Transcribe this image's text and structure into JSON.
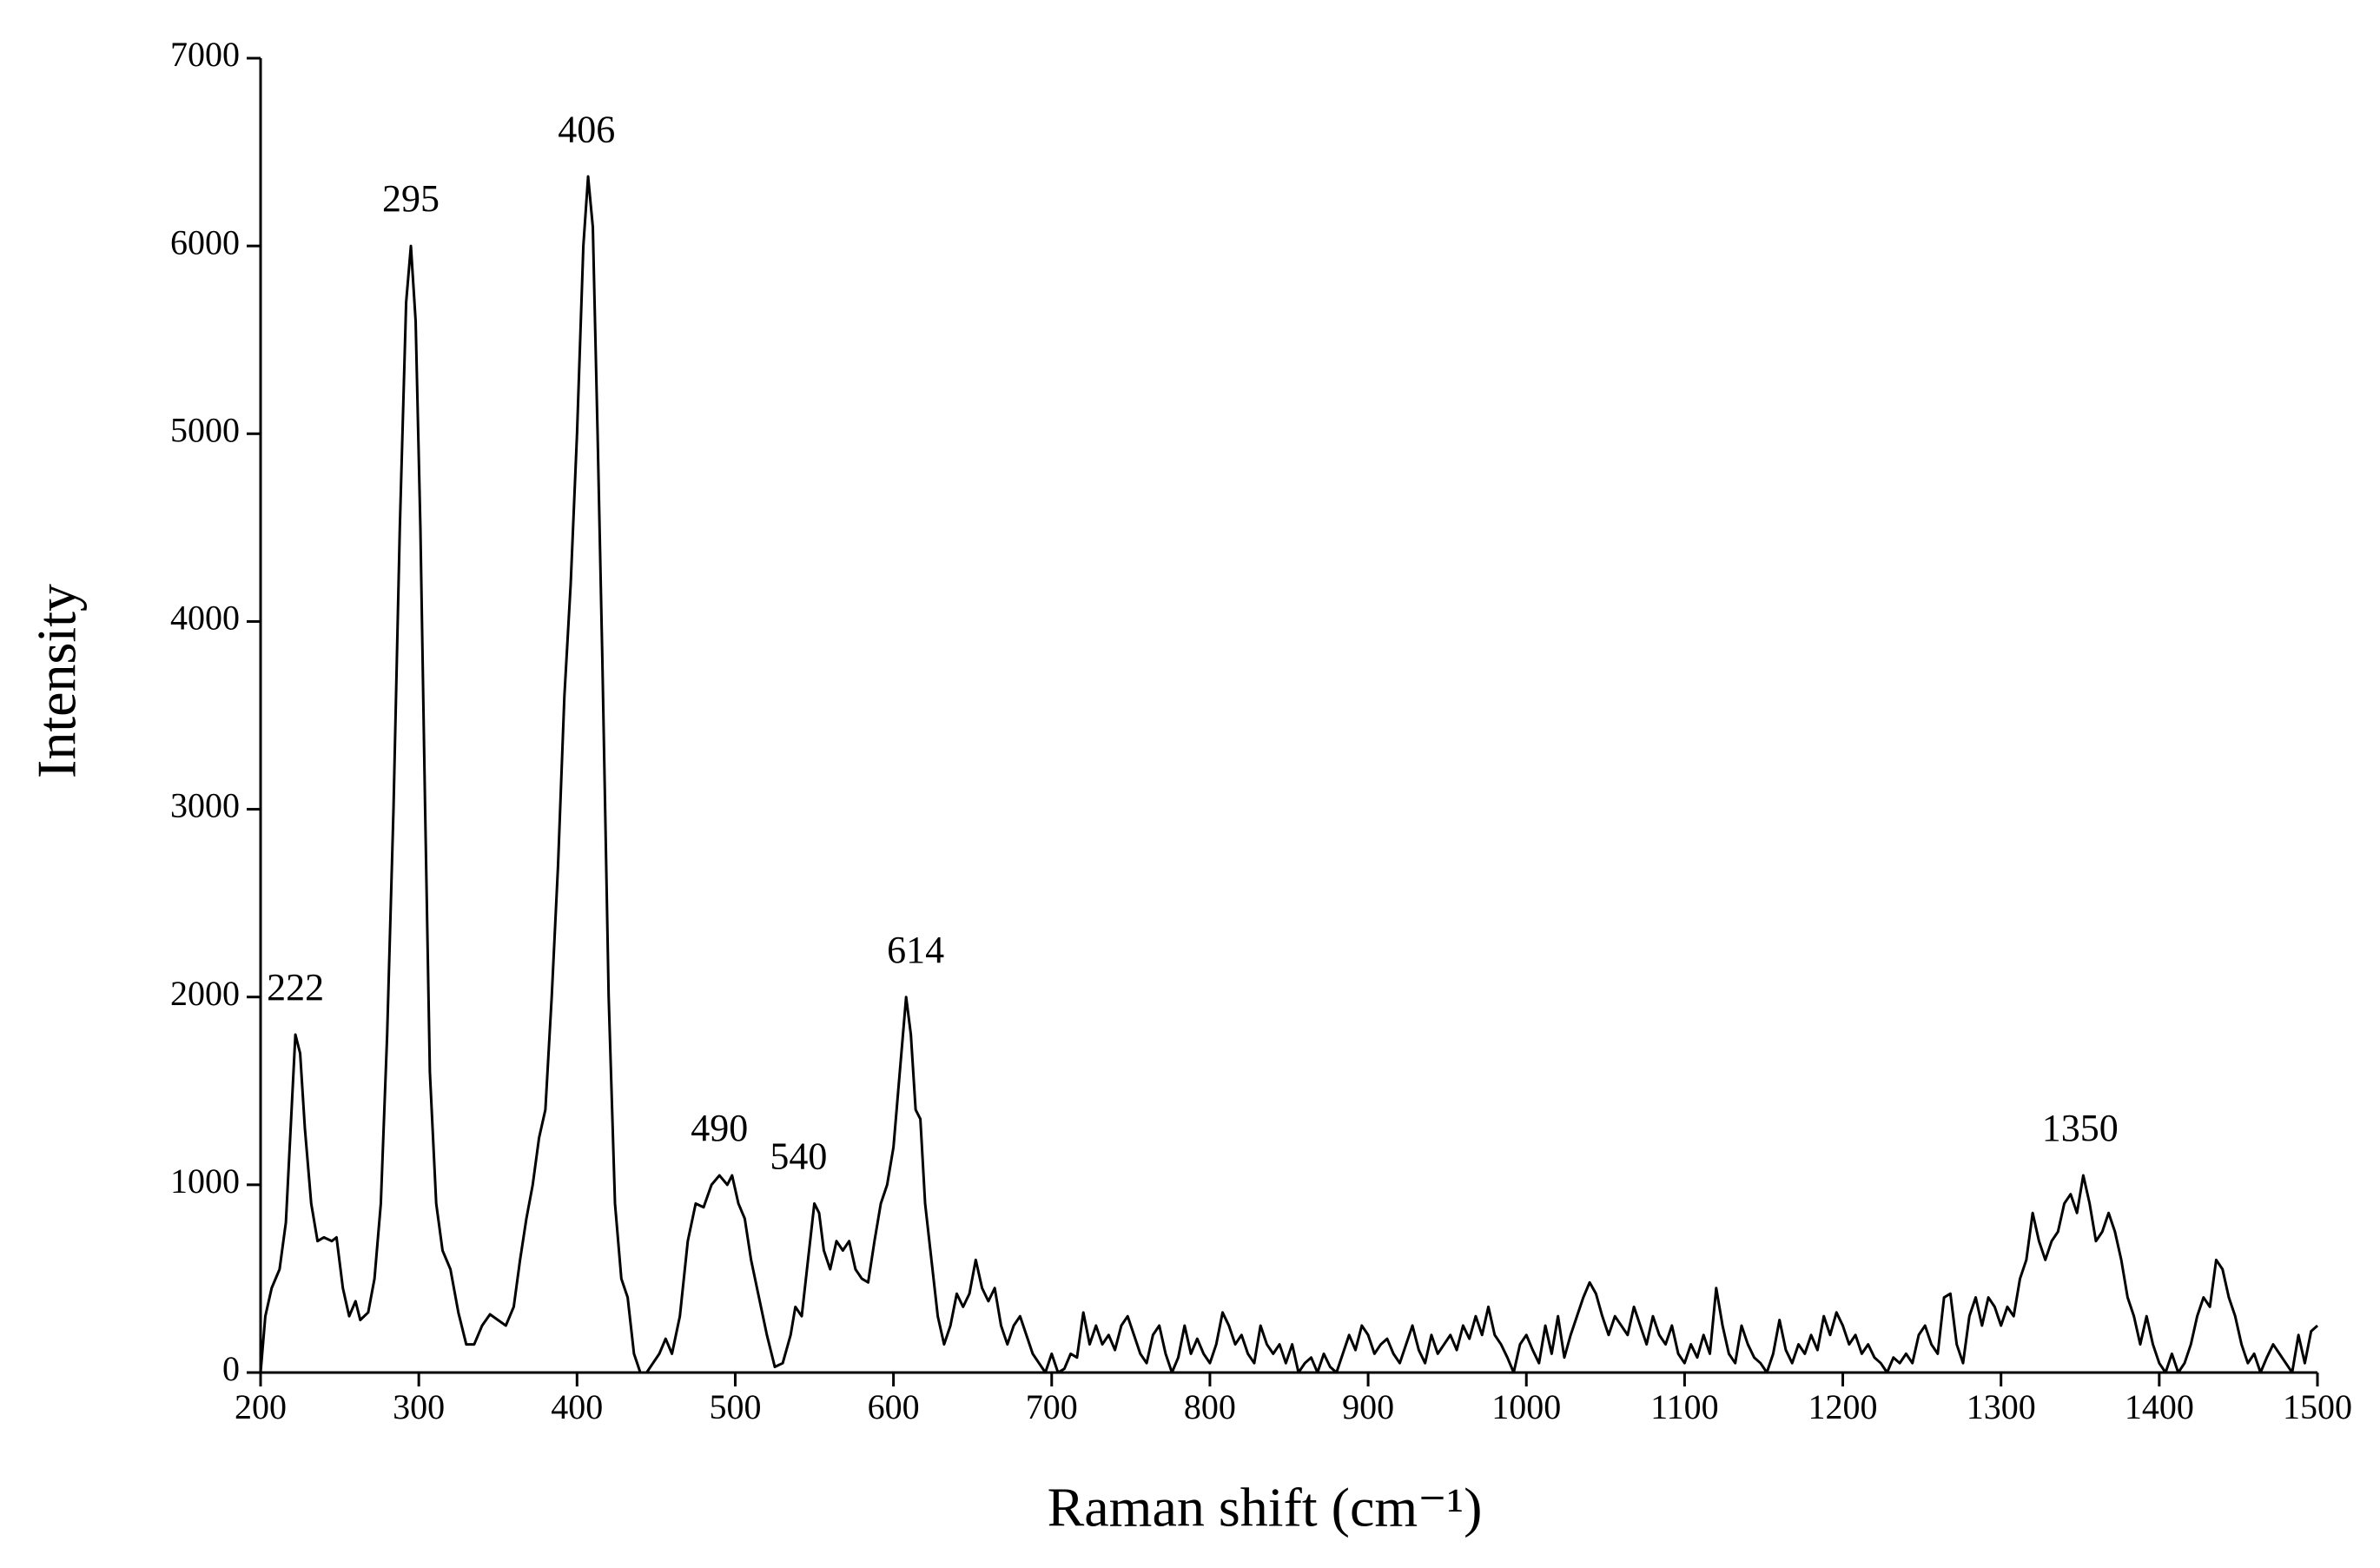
{
  "chart_data": {
    "type": "line",
    "xlabel": "Raman shift (cm⁻¹)",
    "ylabel": "Intensity",
    "xlim": [
      200,
      1500
    ],
    "ylim": [
      0,
      7000
    ],
    "xticks": [
      200,
      300,
      400,
      500,
      600,
      700,
      800,
      900,
      1000,
      1100,
      1200,
      1300,
      1400,
      1500
    ],
    "yticks": [
      0,
      1000,
      2000,
      3000,
      4000,
      5000,
      6000,
      7000
    ],
    "color": "#000000",
    "annotations": [
      {
        "text": "222",
        "x": 222,
        "y": 1800
      },
      {
        "text": "295",
        "x": 295,
        "y": 6000
      },
      {
        "text": "406",
        "x": 406,
        "y": 6370
      },
      {
        "text": "490",
        "x": 490,
        "y": 1050
      },
      {
        "text": "540",
        "x": 540,
        "y": 900
      },
      {
        "text": "614",
        "x": 614,
        "y": 2000
      },
      {
        "text": "1350",
        "x": 1350,
        "y": 1050
      }
    ],
    "x": [
      200,
      203,
      207,
      212,
      216,
      219,
      222,
      225,
      228,
      232,
      236,
      240,
      245,
      248,
      252,
      256,
      260,
      263,
      268,
      272,
      276,
      280,
      284,
      288,
      292,
      295,
      298,
      301,
      304,
      307,
      311,
      315,
      320,
      325,
      330,
      335,
      340,
      345,
      350,
      355,
      360,
      364,
      368,
      372,
      376,
      380,
      384,
      388,
      392,
      396,
      400,
      404,
      407,
      410,
      413,
      416,
      420,
      424,
      428,
      432,
      436,
      440,
      444,
      448,
      452,
      456,
      460,
      465,
      470,
      475,
      480,
      485,
      490,
      495,
      498,
      502,
      506,
      510,
      515,
      520,
      525,
      530,
      535,
      538,
      542,
      546,
      550,
      553,
      556,
      560,
      564,
      568,
      572,
      576,
      580,
      584,
      588,
      592,
      596,
      600,
      604,
      608,
      611,
      614,
      617,
      620,
      624,
      628,
      632,
      636,
      640,
      644,
      648,
      652,
      656,
      660,
      664,
      668,
      672,
      676,
      680,
      684,
      688,
      692,
      696,
      700,
      704,
      708,
      712,
      716,
      720,
      724,
      728,
      732,
      736,
      740,
      744,
      748,
      752,
      756,
      760,
      764,
      768,
      772,
      776,
      780,
      784,
      788,
      792,
      796,
      800,
      804,
      808,
      812,
      816,
      820,
      824,
      828,
      832,
      836,
      840,
      844,
      848,
      852,
      856,
      860,
      864,
      868,
      872,
      876,
      880,
      884,
      888,
      892,
      896,
      900,
      904,
      908,
      912,
      916,
      920,
      924,
      928,
      932,
      936,
      940,
      944,
      948,
      952,
      956,
      960,
      964,
      968,
      972,
      976,
      980,
      984,
      988,
      992,
      996,
      1000,
      1004,
      1008,
      1012,
      1016,
      1020,
      1024,
      1028,
      1032,
      1036,
      1040,
      1044,
      1048,
      1052,
      1056,
      1060,
      1064,
      1068,
      1072,
      1076,
      1080,
      1084,
      1088,
      1092,
      1096,
      1100,
      1104,
      1108,
      1112,
      1116,
      1120,
      1124,
      1128,
      1132,
      1136,
      1140,
      1144,
      1148,
      1152,
      1156,
      1160,
      1164,
      1168,
      1172,
      1176,
      1180,
      1184,
      1188,
      1192,
      1196,
      1200,
      1204,
      1208,
      1212,
      1216,
      1220,
      1224,
      1228,
      1232,
      1236,
      1240,
      1244,
      1248,
      1252,
      1256,
      1260,
      1264,
      1268,
      1272,
      1276,
      1280,
      1284,
      1288,
      1292,
      1296,
      1300,
      1304,
      1308,
      1312,
      1316,
      1320,
      1324,
      1328,
      1332,
      1336,
      1340,
      1344,
      1348,
      1352,
      1356,
      1360,
      1364,
      1368,
      1372,
      1376,
      1380,
      1384,
      1388,
      1392,
      1396,
      1400,
      1404,
      1408,
      1412,
      1416,
      1420,
      1424,
      1428,
      1432,
      1436,
      1440,
      1444,
      1448,
      1452,
      1456,
      1460,
      1464,
      1468,
      1472,
      1476,
      1480,
      1484,
      1488,
      1492,
      1496,
      1500
    ],
    "values": [
      0,
      300,
      450,
      550,
      800,
      1300,
      1800,
      1700,
      1300,
      900,
      700,
      720,
      700,
      720,
      450,
      300,
      380,
      280,
      320,
      500,
      900,
      1800,
      3000,
      4500,
      5700,
      6000,
      5600,
      4500,
      3000,
      1600,
      900,
      650,
      550,
      320,
      150,
      150,
      250,
      310,
      280,
      250,
      350,
      600,
      820,
      1000,
      1250,
      1400,
      2000,
      2700,
      3600,
      4200,
      5000,
      6000,
      6370,
      6100,
      5000,
      3800,
      2000,
      900,
      500,
      400,
      100,
      0,
      0,
      50,
      100,
      180,
      100,
      300,
      700,
      900,
      880,
      1000,
      1050,
      1000,
      1050,
      900,
      820,
      600,
      400,
      200,
      30,
      50,
      200,
      350,
      300,
      600,
      900,
      850,
      650,
      550,
      700,
      650,
      700,
      550,
      500,
      480,
      700,
      900,
      1000,
      1200,
      1600,
      2000,
      1800,
      1400,
      1350,
      900,
      600,
      300,
      150,
      250,
      420,
      350,
      420,
      600,
      450,
      380,
      450,
      250,
      150,
      250,
      300,
      200,
      100,
      50,
      0,
      100,
      0,
      20,
      100,
      80,
      320,
      150,
      250,
      150,
      200,
      120,
      250,
      300,
      200,
      100,
      50,
      200,
      250,
      100,
      0,
      80,
      250,
      100,
      180,
      100,
      50,
      150,
      320,
      250,
      150,
      200,
      100,
      50,
      250,
      150,
      100,
      150,
      50,
      150,
      0,
      50,
      80,
      0,
      100,
      30,
      0,
      100,
      200,
      120,
      250,
      200,
      100,
      150,
      180,
      100,
      50,
      150,
      250,
      120,
      50,
      200,
      100,
      150,
      200,
      120,
      250,
      180,
      300,
      200,
      350,
      200,
      150,
      80,
      0,
      150,
      200,
      120,
      50,
      250,
      100,
      300,
      80,
      200,
      300,
      400,
      480,
      420,
      300,
      200,
      300,
      250,
      200,
      350,
      250,
      150,
      300,
      200,
      150,
      250,
      100,
      50,
      150,
      80,
      200,
      100,
      450,
      250,
      100,
      50,
      250,
      150,
      80,
      50,
      0,
      100,
      280,
      120,
      50,
      150,
      100,
      200,
      120,
      300,
      200,
      320,
      250,
      150,
      200,
      100,
      150,
      80,
      50,
      0,
      80,
      50,
      100,
      50,
      200,
      250,
      150,
      100,
      400,
      420,
      150,
      50,
      300,
      400,
      250,
      400,
      350,
      250,
      350,
      300,
      500,
      600,
      850,
      700,
      600,
      700,
      750,
      900,
      950,
      850,
      1050,
      900,
      700,
      750,
      850,
      750,
      600,
      400,
      300,
      150,
      300,
      150,
      50,
      0,
      100,
      0,
      50,
      150,
      300,
      400,
      350,
      600,
      550,
      400,
      300,
      150,
      50,
      100,
      0,
      80,
      150,
      100,
      50,
      0,
      200,
      50,
      220,
      250
    ]
  }
}
